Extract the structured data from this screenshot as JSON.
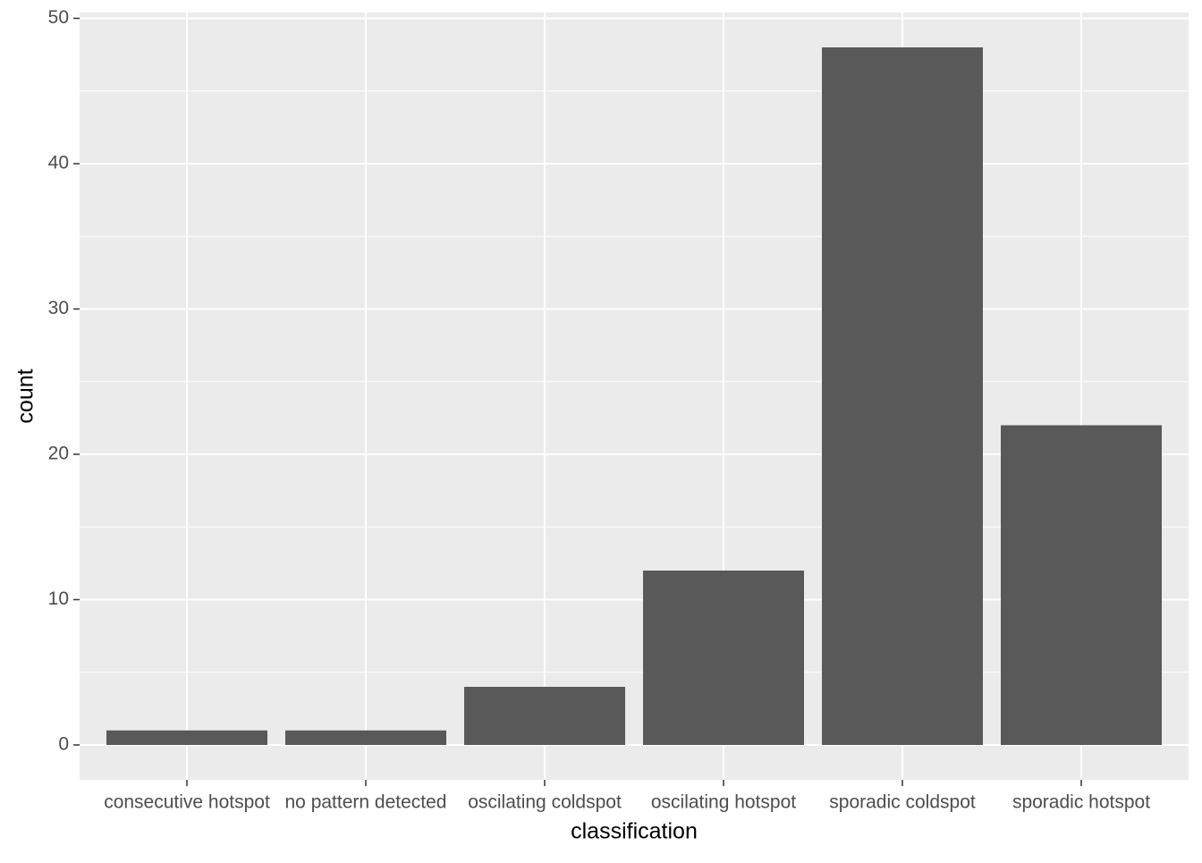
{
  "chart_data": {
    "type": "bar",
    "x_label": "classification",
    "y_label": "count",
    "categories": [
      "consecutive hotspot",
      "no pattern detected",
      "oscilating coldspot",
      "oscilating hotspot",
      "sporadic coldspot",
      "sporadic hotspot"
    ],
    "values": [
      1,
      1,
      4,
      12,
      48,
      22
    ],
    "color": "#595959",
    "ylim": [
      -2.4,
      50.4
    ],
    "yticks": [
      0,
      10,
      20,
      30,
      40,
      50
    ],
    "yminor": [
      5,
      15,
      25,
      35,
      45
    ],
    "grid": true
  }
}
